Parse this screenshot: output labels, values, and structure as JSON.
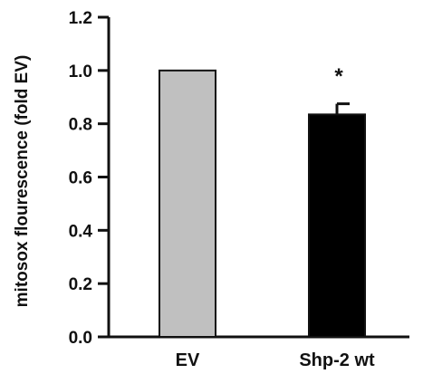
{
  "chart_data": {
    "type": "bar",
    "title": "",
    "xlabel": "",
    "ylabel": "mitosox flourescence (fold EV)",
    "ylim": [
      0,
      1.2
    ],
    "y_ticks": [
      0.0,
      0.2,
      0.4,
      0.6,
      0.8,
      1.0,
      1.2
    ],
    "y_tick_labels": [
      "0.0",
      "0.2",
      "0.4",
      "0.6",
      "0.8",
      "1.0",
      "1.2"
    ],
    "categories": [
      "EV",
      "Shp-2 wt"
    ],
    "values": [
      1.0,
      0.835
    ],
    "error_bars": [
      null,
      0.04
    ],
    "bar_colors": [
      "#c0c0c0",
      "#000000"
    ],
    "significance": [
      null,
      "*"
    ],
    "grid": false,
    "legend": "none"
  }
}
